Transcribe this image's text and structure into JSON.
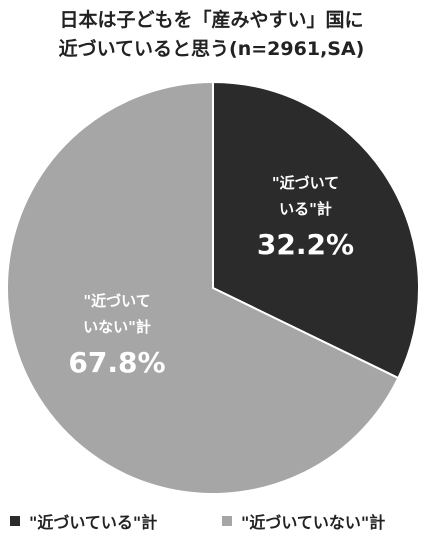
{
  "chart_data": {
    "type": "pie",
    "title_lines": [
      "日本は子どもを「産みやすい」国に",
      "近づいていると思う(n=2961,SA)"
    ],
    "slices": [
      {
        "label": "\"近づいている\"計",
        "inner_label_lines": [
          "\"近づいて",
          "いる\"計"
        ],
        "value": 32.2,
        "value_label": "32.2%",
        "color": "#2b2b2b"
      },
      {
        "label": "\"近づいていない\"計",
        "inner_label_lines": [
          "\"近づいて",
          "いない\"計"
        ],
        "value": 67.8,
        "value_label": "67.8%",
        "color": "#a6a6a6"
      }
    ],
    "legend_position": "bottom"
  }
}
